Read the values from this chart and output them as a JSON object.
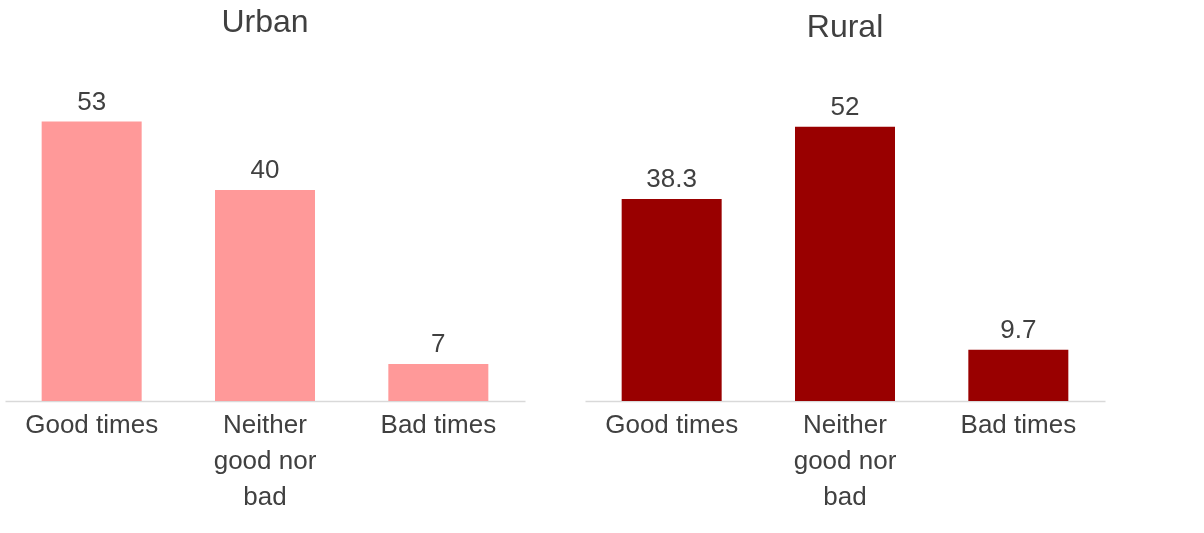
{
  "chart_data": [
    {
      "type": "bar",
      "title": "Urban",
      "categories": [
        "Good times",
        "Neither good nor bad",
        "Bad times"
      ],
      "values": [
        53,
        40,
        7
      ],
      "color": "#ff9999",
      "data_labels": true
    },
    {
      "type": "bar",
      "title": "Rural",
      "categories": [
        "Good times",
        "Neither good nor bad",
        "Bad times"
      ],
      "values": [
        38.3,
        52,
        9.7
      ],
      "color": "#990000",
      "data_labels": true
    }
  ]
}
